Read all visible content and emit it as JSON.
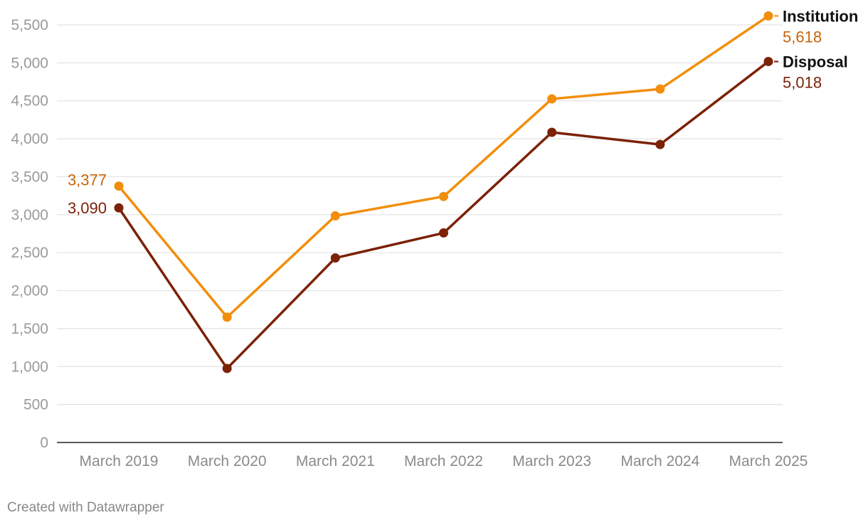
{
  "chart_data": {
    "type": "line",
    "categories": [
      "March 2019",
      "March 2020",
      "March 2021",
      "March 2022",
      "March 2023",
      "March 2024",
      "March 2025"
    ],
    "series": [
      {
        "name": "Institution",
        "color": "#f28e0c",
        "label_color": "#c7650a",
        "values": [
          3377,
          1650,
          2985,
          3240,
          4525,
          4655,
          5618
        ],
        "start_label": "3,377",
        "end_label": "5,618"
      },
      {
        "name": "Disposal",
        "color": "#7b2207",
        "label_color": "#7b2207",
        "values": [
          3090,
          975,
          2430,
          2760,
          4085,
          3925,
          5018
        ],
        "start_label": "3,090",
        "end_label": "5,018"
      }
    ],
    "yticks": [
      "0",
      "500",
      "1,000",
      "1,500",
      "2,000",
      "2,500",
      "3,000",
      "3,500",
      "4,000",
      "4,500",
      "5,000",
      "5,500"
    ],
    "ytick_values": [
      0,
      500,
      1000,
      1500,
      2000,
      2500,
      3000,
      3500,
      4000,
      4500,
      5000,
      5500
    ],
    "ylim": [
      0,
      5500
    ],
    "grid": true
  },
  "footer": "Created with Datawrapper"
}
